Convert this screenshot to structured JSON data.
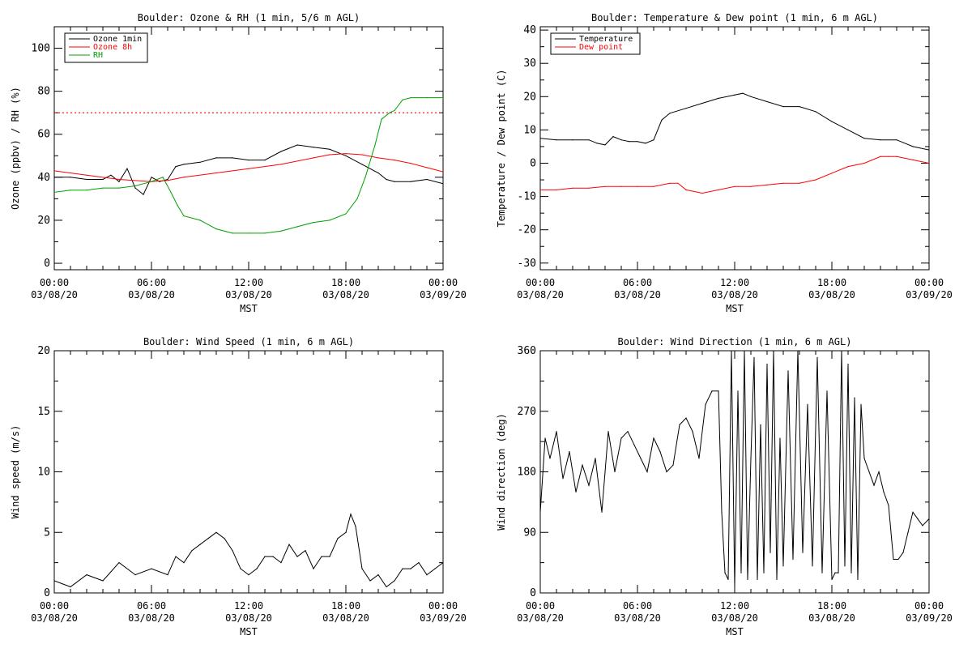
{
  "chart_data": [
    {
      "type": "line",
      "title": "Boulder: Ozone & RH (1 min, 5/6 m AGL)",
      "xlabel": "MST",
      "ylabel": "Ozone (ppbv) / RH (%)",
      "xlim": [
        "03/08/20 00:00",
        "03/09/20 00:00"
      ],
      "ylim": [
        -3,
        110
      ],
      "x_ticks": [
        {
          "time": "00:00",
          "date": "03/08/20"
        },
        {
          "time": "06:00",
          "date": "03/08/20"
        },
        {
          "time": "12:00",
          "date": "03/08/20"
        },
        {
          "time": "18:00",
          "date": "03/08/20"
        },
        {
          "time": "00:00",
          "date": "03/09/20"
        }
      ],
      "y_ticks": [
        0,
        20,
        40,
        60,
        80,
        100
      ],
      "y_minor_step": 10,
      "legend_position": "top-left",
      "reference_line": {
        "value": 70,
        "color": "#ff0000",
        "style": "dotted"
      },
      "series": [
        {
          "name": "Ozone 1min",
          "color": "#000000",
          "x_hours": [
            0,
            1,
            2,
            3,
            3.5,
            4,
            4.5,
            5,
            5.5,
            6,
            6.5,
            7,
            7.5,
            8,
            9,
            10,
            11,
            12,
            13,
            14,
            15,
            16,
            17,
            18,
            19,
            20,
            20.5,
            21,
            22,
            23,
            24
          ],
          "values": [
            40,
            40,
            39,
            39,
            41,
            38,
            44,
            35,
            32,
            40,
            38,
            39,
            45,
            46,
            47,
            49,
            49,
            48,
            48,
            52,
            55,
            54,
            53,
            50,
            46,
            42,
            39,
            38,
            38,
            39,
            37
          ]
        },
        {
          "name": "Ozone 8h",
          "color": "#ff0000",
          "x_hours": [
            0,
            2,
            4,
            6,
            7,
            8,
            10,
            12,
            14,
            16,
            17,
            18,
            19,
            20,
            21,
            22,
            23,
            24
          ],
          "values": [
            43,
            41,
            39,
            38,
            38.5,
            40,
            42,
            44,
            46,
            49,
            50.5,
            51,
            50.5,
            49,
            48,
            46.5,
            44.5,
            42.5
          ]
        },
        {
          "name": "RH",
          "color": "#00a000",
          "x_hours": [
            0,
            1,
            2,
            3,
            4,
            5,
            6,
            6.7,
            7.2,
            7.6,
            8,
            9,
            10,
            11,
            12,
            13,
            14,
            15,
            16,
            17,
            18,
            18.7,
            19.2,
            19.8,
            20.2,
            20.7,
            21,
            21.5,
            22,
            23,
            24
          ],
          "values": [
            33,
            34,
            34,
            35,
            35,
            36,
            38,
            40,
            33,
            27,
            22,
            20,
            16,
            14,
            14,
            14,
            15,
            17,
            19,
            20,
            23,
            30,
            40,
            55,
            67,
            70,
            71,
            76,
            77,
            77,
            77
          ]
        }
      ]
    },
    {
      "type": "line",
      "title": "Boulder: Temperature & Dew point (1 min, 6 m AGL)",
      "xlabel": "MST",
      "ylabel": "Temperature / Dew point (C)",
      "xlim": [
        "03/08/20 00:00",
        "03/09/20 00:00"
      ],
      "ylim": [
        -32,
        41
      ],
      "x_ticks": [
        {
          "time": "00:00",
          "date": "03/08/20"
        },
        {
          "time": "06:00",
          "date": "03/08/20"
        },
        {
          "time": "12:00",
          "date": "03/08/20"
        },
        {
          "time": "18:00",
          "date": "03/08/20"
        },
        {
          "time": "00:00",
          "date": "03/09/20"
        }
      ],
      "y_ticks": [
        -30,
        -20,
        -10,
        0,
        10,
        20,
        30,
        40
      ],
      "y_minor_step": 5,
      "legend_position": "top-left",
      "series": [
        {
          "name": "Temperature",
          "color": "#000000",
          "x_hours": [
            0,
            1,
            2,
            3,
            3.5,
            4,
            4.5,
            5,
            5.5,
            6,
            6.5,
            7,
            7.5,
            8,
            9,
            10,
            11,
            12,
            12.5,
            13,
            14,
            15,
            16,
            17,
            18,
            19,
            20,
            21,
            22,
            23,
            24
          ],
          "values": [
            7.5,
            7,
            7,
            7,
            6,
            5.5,
            8,
            7,
            6.5,
            6.5,
            6,
            7,
            13,
            15,
            16.5,
            18,
            19.5,
            20.5,
            21,
            20,
            18.5,
            17,
            17,
            15.5,
            12.5,
            10,
            7.5,
            7,
            7,
            5,
            4
          ]
        },
        {
          "name": "Dew point",
          "color": "#ff0000",
          "x_hours": [
            0,
            1,
            2,
            3,
            4,
            5,
            6,
            7,
            8,
            8.5,
            9,
            10,
            11,
            12,
            13,
            14,
            15,
            16,
            17,
            18,
            19,
            20,
            21,
            21.5,
            22,
            23,
            24
          ],
          "values": [
            -8,
            -8,
            -7.5,
            -7.5,
            -7,
            -7,
            -7,
            -7,
            -6,
            -6,
            -8,
            -9,
            -8,
            -7,
            -7,
            -6.5,
            -6,
            -6,
            -5,
            -3,
            -1,
            0,
            2,
            2,
            2,
            1,
            0
          ]
        }
      ]
    },
    {
      "type": "line",
      "title": "Boulder: Wind Speed (1 min, 6 m AGL)",
      "xlabel": "MST",
      "ylabel": "Wind speed (m/s)",
      "xlim": [
        "03/08/20 00:00",
        "03/09/20 00:00"
      ],
      "ylim": [
        0,
        20
      ],
      "x_ticks": [
        {
          "time": "00:00",
          "date": "03/08/20"
        },
        {
          "time": "06:00",
          "date": "03/08/20"
        },
        {
          "time": "12:00",
          "date": "03/08/20"
        },
        {
          "time": "18:00",
          "date": "03/08/20"
        },
        {
          "time": "00:00",
          "date": "03/09/20"
        }
      ],
      "y_ticks": [
        0,
        5,
        10,
        15,
        20
      ],
      "y_minor_step": 2.5,
      "series": [
        {
          "name": "",
          "color": "#000000",
          "x_hours": [
            0,
            1,
            2,
            3,
            4,
            5,
            6,
            7,
            7.5,
            8,
            8.5,
            9,
            9.5,
            10,
            10.5,
            11,
            11.5,
            12,
            12.5,
            13,
            13.5,
            14,
            14.5,
            15,
            15.5,
            16,
            16.5,
            17,
            17.5,
            18,
            18.3,
            18.6,
            19,
            19.5,
            20,
            20.5,
            21,
            21.5,
            22,
            22.5,
            23,
            23.5,
            24
          ],
          "values": [
            1,
            0.5,
            1.5,
            1,
            2.5,
            1.5,
            2,
            1.5,
            3,
            2.5,
            3.5,
            4,
            4.5,
            5,
            4.5,
            3.5,
            2,
            1.5,
            2,
            3,
            3,
            2.5,
            4,
            3,
            3.5,
            2,
            3,
            3,
            4.5,
            5,
            6.5,
            5.5,
            2,
            1,
            1.5,
            0.5,
            1,
            2,
            2,
            2.5,
            1.5,
            2,
            2.5
          ]
        }
      ]
    },
    {
      "type": "line",
      "title": "Boulder: Wind Direction (1 min, 6 m AGL)",
      "xlabel": "MST",
      "ylabel": "Wind direction (deg)",
      "xlim": [
        "03/08/20 00:00",
        "03/09/20 00:00"
      ],
      "ylim": [
        0,
        360
      ],
      "x_ticks": [
        {
          "time": "00:00",
          "date": "03/08/20"
        },
        {
          "time": "06:00",
          "date": "03/08/20"
        },
        {
          "time": "12:00",
          "date": "03/08/20"
        },
        {
          "time": "18:00",
          "date": "03/08/20"
        },
        {
          "time": "00:00",
          "date": "03/09/20"
        }
      ],
      "y_ticks": [
        0,
        90,
        180,
        270,
        360
      ],
      "y_minor_step": 45,
      "series": [
        {
          "name": "",
          "color": "#000000",
          "x_hours": [
            0,
            0.3,
            0.6,
            1,
            1.4,
            1.8,
            2.2,
            2.6,
            3,
            3.4,
            3.8,
            4.2,
            4.6,
            5,
            5.4,
            5.8,
            6.2,
            6.6,
            7,
            7.4,
            7.8,
            8.2,
            8.6,
            9,
            9.4,
            9.8,
            10.2,
            10.6,
            11,
            11.2,
            11.4,
            11.6,
            11.8,
            12,
            12.2,
            12.4,
            12.6,
            12.8,
            13,
            13.2,
            13.4,
            13.6,
            13.8,
            14,
            14.2,
            14.4,
            14.6,
            14.8,
            15,
            15.3,
            15.6,
            15.9,
            16.2,
            16.5,
            16.8,
            17.1,
            17.4,
            17.7,
            18,
            18.2,
            18.4,
            18.6,
            18.8,
            19,
            19.2,
            19.4,
            19.6,
            19.8,
            20,
            20.3,
            20.6,
            20.9,
            21.2,
            21.5,
            21.8,
            22.1,
            22.4,
            22.7,
            23,
            23.3,
            23.6,
            24
          ],
          "values": [
            120,
            230,
            200,
            240,
            170,
            210,
            150,
            190,
            160,
            200,
            120,
            240,
            180,
            230,
            240,
            220,
            200,
            180,
            230,
            210,
            180,
            190,
            250,
            260,
            240,
            200,
            280,
            300,
            300,
            120,
            30,
            20,
            360,
            10,
            300,
            30,
            360,
            20,
            200,
            350,
            20,
            250,
            30,
            340,
            60,
            360,
            20,
            230,
            40,
            330,
            50,
            360,
            60,
            280,
            40,
            350,
            30,
            300,
            20,
            30,
            30,
            360,
            40,
            340,
            30,
            290,
            20,
            280,
            200,
            180,
            160,
            180,
            150,
            130,
            50,
            50,
            60,
            90,
            120,
            110,
            100,
            110
          ]
        }
      ]
    }
  ]
}
